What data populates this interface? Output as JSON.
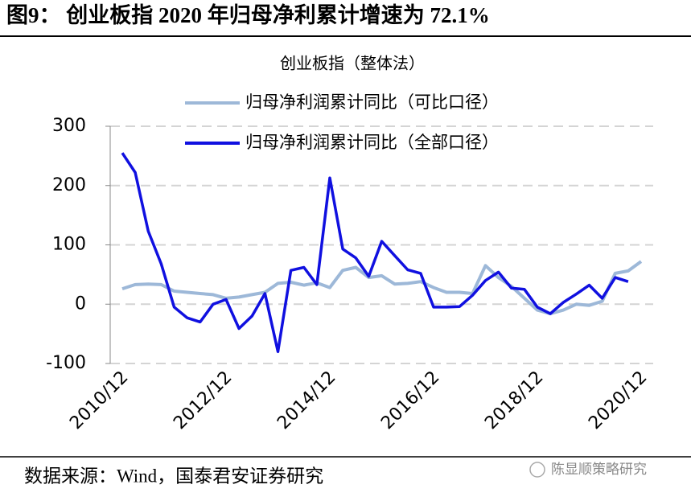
{
  "header": {
    "title": "图9：  创业板指 2020 年归母净利累计增速为 72.1%"
  },
  "chart_data": {
    "type": "line",
    "title": "创业板指（整体法）",
    "categories": [
      "2010/12",
      null,
      null,
      null,
      null,
      null,
      null,
      null,
      "2012/12",
      null,
      null,
      null,
      null,
      null,
      null,
      null,
      "2014/12",
      null,
      null,
      null,
      null,
      null,
      null,
      null,
      "2016/12",
      null,
      null,
      null,
      null,
      null,
      null,
      null,
      "2018/12",
      null,
      null,
      null,
      null,
      null,
      null,
      null,
      "2020/12"
    ],
    "series": [
      {
        "name": "归母净利润累计同比（可比口径）",
        "color": "#9db8d8",
        "values": [
          26,
          33,
          34,
          33,
          22,
          20,
          18,
          16,
          10,
          12,
          16,
          20,
          35,
          37,
          32,
          36,
          28,
          57,
          62,
          45,
          48,
          34,
          35,
          38,
          28,
          20,
          20,
          18,
          65,
          45,
          30,
          10,
          -10,
          -16,
          -10,
          0,
          -2,
          5,
          52,
          56,
          72.1
        ]
      },
      {
        "name": "归母净利润累计同比（全部口径）",
        "color": "#1010e0",
        "values": [
          255,
          222,
          123,
          68,
          -5,
          -23,
          -30,
          0,
          8,
          -41,
          -20,
          18,
          -80,
          57,
          62,
          33,
          213,
          93,
          78,
          47,
          106,
          82,
          58,
          52,
          -5,
          -5,
          -4,
          15,
          40,
          54,
          27,
          25,
          -5,
          -16,
          3,
          17,
          32,
          10,
          45,
          38,
          null
        ]
      }
    ],
    "ylim": [
      -100,
      300
    ],
    "yticks": [
      -100,
      0,
      100,
      200,
      300
    ],
    "grid": true,
    "legend": "top"
  },
  "footer": {
    "source": "数据来源：Wind，国泰君安证券研究",
    "watermark": "陈显顺策略研究"
  }
}
